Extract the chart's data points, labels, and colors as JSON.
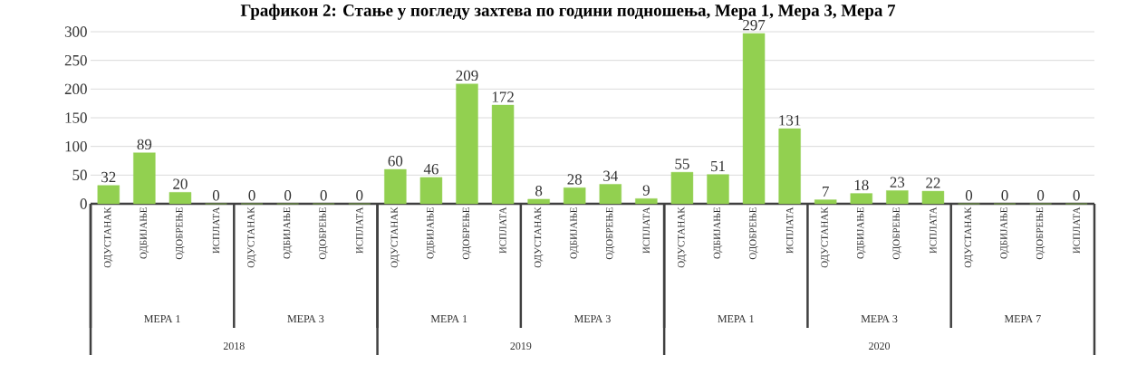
{
  "chart_data": {
    "type": "bar",
    "title": "Графикон 2: Стање у погледу захтева по години подношења, Мера 1, Мера 3, Мера 7",
    "categories": [
      "ОДУСТАНАК",
      "ОДБИЈАЊЕ",
      "ОДОБРЕЊЕ",
      "ИСПЛАТА",
      "ОДУСТАНАК",
      "ОДБИЈАЊЕ",
      "ОДОБРЕЊЕ",
      "ИСПЛАТА",
      "ОДУСТАНАК",
      "ОДБИЈАЊЕ",
      "ОДОБРЕЊЕ",
      "ИСПЛАТА",
      "ОДУСТАНАК",
      "ОДБИЈАЊЕ",
      "ОДОБРЕЊЕ",
      "ИСПЛАТА",
      "ОДУСТАНАК",
      "ОДБИЈАЊЕ",
      "ОДОБРЕЊЕ",
      "ИСПЛАТА",
      "ОДУСТАНАК",
      "ОДБИЈАЊЕ",
      "ОДОБРЕЊЕ",
      "ИСПЛАТА",
      "ОДУСТАНАК",
      "ОДБИЈАЊЕ",
      "ОДОБРЕЊЕ",
      "ИСПЛАТА"
    ],
    "values": [
      32,
      89,
      20,
      0,
      0,
      0,
      0,
      0,
      60,
      46,
      209,
      172,
      8,
      28,
      34,
      9,
      55,
      51,
      297,
      131,
      7,
      18,
      23,
      22,
      0,
      0,
      0,
      0
    ],
    "color": "#92d050",
    "data_labels": true,
    "annotations": [
      "МЕРА 1",
      "МЕРА 3",
      "МЕРА 1",
      "МЕРА 3",
      "МЕРА 1",
      "МЕРА 3",
      "МЕРА 7",
      "2018",
      "2019",
      "2020"
    ],
    "ylim": [
      0,
      300
    ],
    "yticks": [
      0,
      50,
      100,
      150,
      200,
      250,
      300
    ],
    "grid": "y"
  }
}
